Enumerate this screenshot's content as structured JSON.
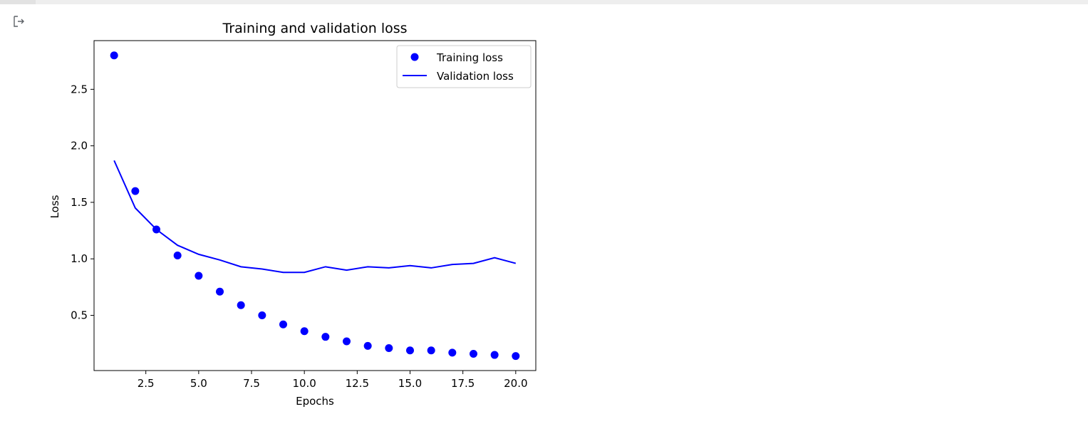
{
  "output_cell": {
    "icon": "output-arrow-icon"
  },
  "chart_data": {
    "type": "line",
    "title": "Training and validation loss",
    "xlabel": "Epochs",
    "ylabel": "Loss",
    "xlim": [
      0.05,
      20.95
    ],
    "ylim": [
      0.0116,
      2.9309
    ],
    "xticks": [
      2.5,
      5.0,
      7.5,
      10.0,
      12.5,
      15.0,
      17.5,
      20.0
    ],
    "xtick_labels": [
      "2.5",
      "5.0",
      "7.5",
      "10.0",
      "12.5",
      "15.0",
      "17.5",
      "20.0"
    ],
    "yticks": [
      0.5,
      1.0,
      1.5,
      2.0,
      2.5
    ],
    "ytick_labels": [
      "0.5",
      "1.0",
      "1.5",
      "2.0",
      "2.5"
    ],
    "x": [
      1,
      2,
      3,
      4,
      5,
      6,
      7,
      8,
      9,
      10,
      11,
      12,
      13,
      14,
      15,
      16,
      17,
      18,
      19,
      20
    ],
    "series": [
      {
        "name": "Training loss",
        "style": "markers",
        "color": "#0000ff",
        "values": [
          2.8,
          1.6,
          1.26,
          1.03,
          0.85,
          0.71,
          0.59,
          0.5,
          0.42,
          0.36,
          0.31,
          0.27,
          0.23,
          0.21,
          0.19,
          0.19,
          0.17,
          0.16,
          0.15,
          0.14
        ]
      },
      {
        "name": "Validation loss",
        "style": "line",
        "color": "#0000ff",
        "values": [
          1.87,
          1.45,
          1.26,
          1.12,
          1.04,
          0.99,
          0.93,
          0.91,
          0.88,
          0.88,
          0.93,
          0.9,
          0.93,
          0.92,
          0.94,
          0.92,
          0.95,
          0.96,
          1.01,
          0.96
        ]
      }
    ],
    "legend": {
      "position": "top-right"
    },
    "grid": false
  }
}
